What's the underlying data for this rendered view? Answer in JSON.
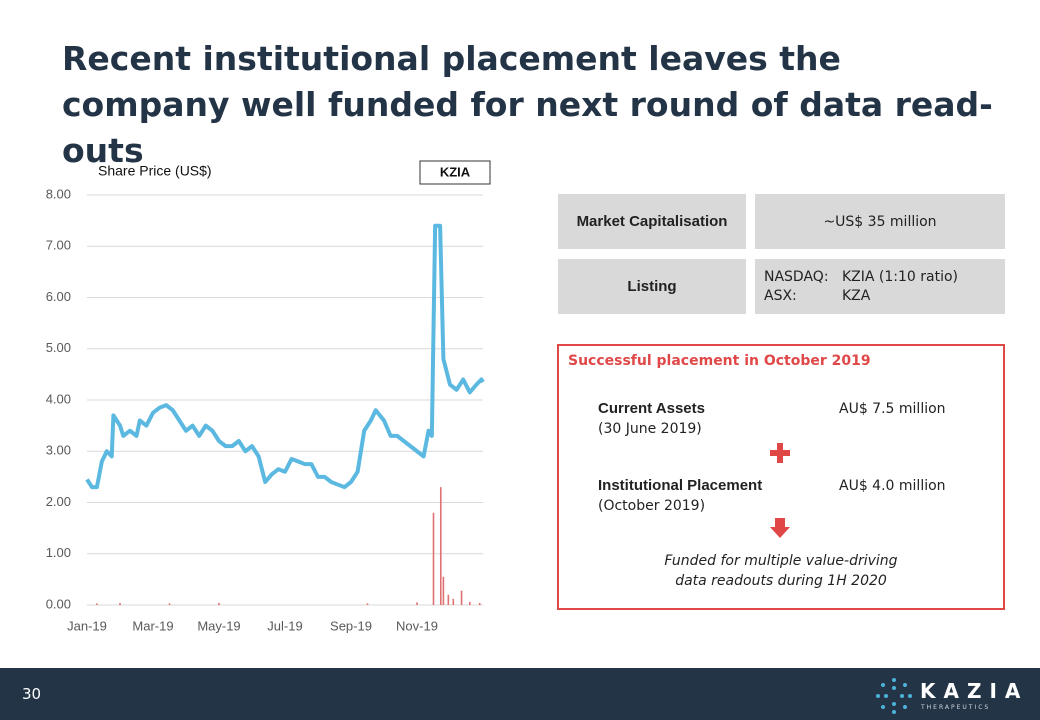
{
  "header": {
    "title": "Recent institutional placement leaves the company well funded for next round of data read-outs"
  },
  "chart_data": {
    "type": "line",
    "ylabel": "Share Price (US$)",
    "label": "KZIA",
    "xlim": [
      0,
      12
    ],
    "xticks": [
      {
        "value": 0,
        "label": "Jan-19"
      },
      {
        "value": 2,
        "label": "Mar-19"
      },
      {
        "value": 4,
        "label": "May-19"
      },
      {
        "value": 6,
        "label": "Jul-19"
      },
      {
        "value": 8,
        "label": "Sep-19"
      },
      {
        "value": 10,
        "label": "Nov-19"
      }
    ],
    "ylim": [
      0,
      8
    ],
    "yticks": [
      {
        "value": 0,
        "label": "0.00"
      },
      {
        "value": 1,
        "label": "1.00"
      },
      {
        "value": 2,
        "label": "2.00"
      },
      {
        "value": 3,
        "label": "3.00"
      },
      {
        "value": 4,
        "label": "4.00"
      },
      {
        "value": 5,
        "label": "5.00"
      },
      {
        "value": 6,
        "label": "6.00"
      },
      {
        "value": 7,
        "label": "7.00"
      },
      {
        "value": 8,
        "label": "8.00"
      }
    ],
    "grid": true,
    "series": [
      {
        "type": "line",
        "color": "#5bb8e0",
        "x": [
          0,
          0.15,
          0.3,
          0.45,
          0.6,
          0.75,
          0.8,
          1.0,
          1.1,
          1.3,
          1.5,
          1.6,
          1.8,
          2.0,
          2.2,
          2.4,
          2.6,
          2.8,
          3.0,
          3.2,
          3.4,
          3.6,
          3.8,
          4.0,
          4.2,
          4.4,
          4.6,
          4.8,
          5.0,
          5.2,
          5.4,
          5.6,
          5.8,
          6.0,
          6.2,
          6.4,
          6.6,
          6.8,
          7.0,
          7.2,
          7.4,
          7.6,
          7.8,
          8.0,
          8.2,
          8.4,
          8.6,
          8.75,
          9.0,
          9.2,
          9.4,
          9.6,
          9.8,
          10.0,
          10.2,
          10.35,
          10.45,
          10.55,
          10.7,
          10.8,
          11.0,
          11.2,
          11.4,
          11.6,
          11.8,
          11.95,
          12.0
        ],
        "values": [
          2.45,
          2.3,
          2.3,
          2.8,
          3.0,
          2.9,
          3.7,
          3.5,
          3.3,
          3.4,
          3.3,
          3.6,
          3.5,
          3.75,
          3.85,
          3.9,
          3.8,
          3.6,
          3.4,
          3.5,
          3.3,
          3.5,
          3.4,
          3.2,
          3.1,
          3.1,
          3.2,
          3.0,
          3.1,
          2.9,
          2.4,
          2.55,
          2.65,
          2.6,
          2.85,
          2.8,
          2.75,
          2.75,
          2.5,
          2.5,
          2.4,
          2.35,
          2.3,
          2.4,
          2.6,
          3.4,
          3.6,
          3.8,
          3.6,
          3.3,
          3.3,
          3.2,
          3.1,
          3.0,
          2.9,
          3.4,
          3.3,
          7.4,
          7.4,
          4.8,
          4.3,
          4.2,
          4.4,
          4.15,
          4.3,
          4.4,
          4.35
        ]
      },
      {
        "type": "bar",
        "color": "#e07070",
        "x": [
          0.3,
          1.0,
          2.5,
          4.0,
          8.5,
          10.0,
          10.5,
          10.72,
          10.8,
          10.95,
          11.1,
          11.35,
          11.6,
          11.9
        ],
        "values": [
          0.03,
          0.04,
          0.03,
          0.04,
          0.03,
          0.05,
          1.8,
          2.3,
          0.55,
          0.2,
          0.12,
          0.28,
          0.06,
          0.04
        ]
      }
    ]
  },
  "table": {
    "rows": [
      [
        "Market Capitalisation",
        "~US$ 35 million"
      ],
      [
        "Listing",
        [
          [
            "NASDAQ:",
            "KZIA (1:10 ratio)"
          ],
          [
            "ASX:",
            "KZA"
          ]
        ]
      ]
    ]
  },
  "placement": {
    "heading": "Successful placement in October 2019",
    "items": [
      {
        "name": "Current Assets",
        "date": "(30 June 2019)",
        "amount": "AU$ 7.5 million"
      },
      {
        "name": "Institutional Placement",
        "date": "(October 2019)",
        "amount": "AU$ 4.0 million"
      }
    ],
    "conclusion": [
      "Funded for multiple value-driving",
      "data readouts during 1H 2020"
    ]
  },
  "footer": {
    "page": "30",
    "logo": "KAZIA",
    "tagline": "THERAPEUTICS"
  }
}
